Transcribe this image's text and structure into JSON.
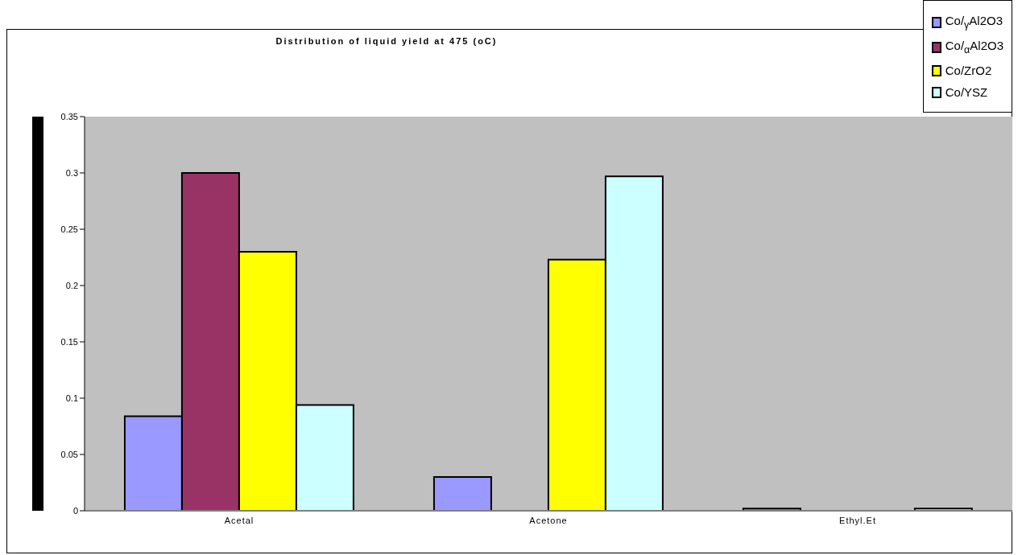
{
  "chart_data": {
    "type": "bar",
    "title": "Distribution of liquid yield at 475 (oC)",
    "categories": [
      "Acetal",
      "Acetone",
      "Ethyl.Et"
    ],
    "series": [
      {
        "name": "Co/$_{γ}$Al2O3",
        "color": "#9999ff",
        "values": [
          0.084,
          0.03,
          0.002
        ]
      },
      {
        "name": "Co/$_{α}$Al2O3",
        "color": "#993366",
        "values": [
          0.3,
          0,
          0
        ]
      },
      {
        "name": "Co/ZrO2",
        "color": "#ffff00",
        "values": [
          0.23,
          0.223,
          0
        ]
      },
      {
        "name": "Co/YSZ",
        "color": "#ccffff",
        "values": [
          0.094,
          0.297,
          0.002
        ]
      }
    ],
    "ylim": [
      0,
      0.35
    ],
    "yticks": [
      0,
      0.05,
      0.1,
      0.15,
      0.2,
      0.25,
      0.3,
      0.35
    ],
    "grid": false,
    "legend": "top right"
  }
}
